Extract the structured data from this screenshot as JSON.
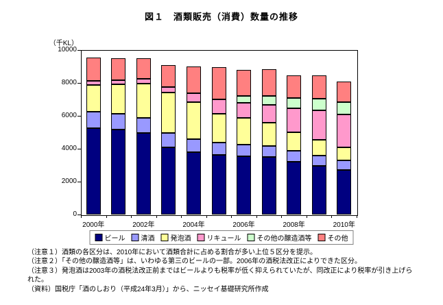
{
  "figure": {
    "title": "図１　酒類販売（消費）数量の推移",
    "unit_label": "（千KL）"
  },
  "chart_data": {
    "type": "bar",
    "stacked": true,
    "title": "図１　酒類販売（消費）数量の推移",
    "ylabel": "（千KL）",
    "ylim": [
      0,
      10000
    ],
    "yticks": [
      0,
      2000,
      4000,
      6000,
      8000,
      10000
    ],
    "gridlines": false,
    "legend_position": "bottom",
    "years": [
      "2000年",
      "2001年",
      "2002年",
      "2003年",
      "2004年",
      "2005年",
      "2006年",
      "2007年",
      "2008年",
      "2009年",
      "2010年"
    ],
    "xtick_labels": [
      "2000年",
      "2002年",
      "2004年",
      "2006年",
      "2008年",
      "2010年"
    ],
    "xtick_year_indexes": [
      0,
      2,
      4,
      6,
      8,
      10
    ],
    "series": [
      {
        "key": "beer",
        "name": "ビール",
        "color": "#000080",
        "values": [
          5260,
          5170,
          4970,
          4090,
          3790,
          3640,
          3560,
          3490,
          3210,
          2960,
          2720
        ]
      },
      {
        "key": "sake",
        "name": "清酒",
        "color": "#9999FF",
        "values": [
          980,
          950,
          900,
          860,
          800,
          750,
          710,
          690,
          650,
          620,
          590
        ]
      },
      {
        "key": "happoshu",
        "name": "発泡酒",
        "color": "#FFFF99",
        "values": [
          1640,
          1790,
          2070,
          2450,
          2260,
          1720,
          1590,
          1400,
          1150,
          950,
          770
        ]
      },
      {
        "key": "liqueur",
        "name": "リキュール",
        "color": "#FF99CC",
        "values": [
          250,
          270,
          300,
          330,
          540,
          880,
          930,
          1080,
          1450,
          1810,
          2020
        ]
      },
      {
        "key": "other-brewed",
        "name": "その他の醸造酒等",
        "color": "#CCFFCC",
        "values": [
          0,
          0,
          0,
          0,
          0,
          0,
          430,
          550,
          640,
          700,
          730
        ]
      },
      {
        "key": "other",
        "name": "その他",
        "color": "#FF8080",
        "values": [
          1410,
          1340,
          1260,
          1370,
          1610,
          1960,
          1580,
          1620,
          1360,
          1420,
          1270
        ]
      }
    ]
  },
  "notes": {
    "lines": [
      "（注意１）酒類の各区分は、2010年において酒類合計に占める割合が多い上位５区分を提示。",
      "（注意２）「その他の醸造酒等」は、いわゆる第三のビールの一部。2006年の酒税法改正によりできた区分。",
      "（注意３）発泡酒は2003年の酒税法改正前まではビールよりも税率が低く抑えられていたが、同改正により税率が引き上げら",
      "れた。",
      "（資料）国税庁「酒のしおり（平成24年3月）」から、ニッセイ基礎研究所作成"
    ]
  }
}
